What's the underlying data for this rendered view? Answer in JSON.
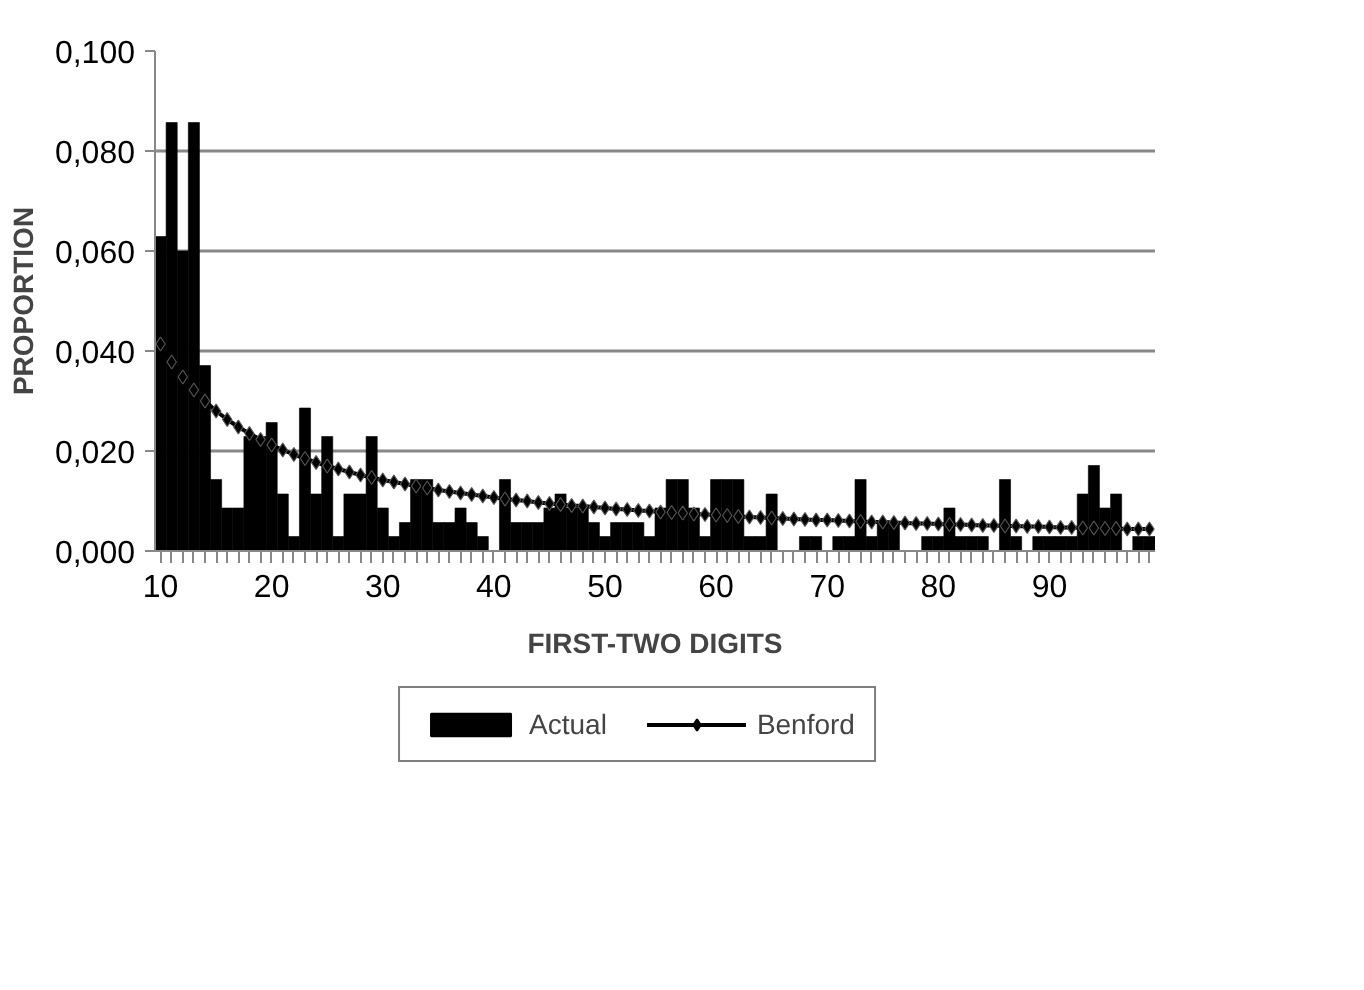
{
  "chart_data": {
    "type": "bar",
    "xlabel": "FIRST-TWO DIGITS",
    "ylabel": "PROPORTION",
    "categories": [
      "10",
      null,
      null,
      null,
      null,
      null,
      null,
      null,
      null,
      null,
      "20",
      null,
      null,
      null,
      null,
      null,
      null,
      null,
      null,
      null,
      "30",
      null,
      null,
      null,
      null,
      null,
      null,
      null,
      null,
      null,
      "40",
      null,
      null,
      null,
      null,
      null,
      null,
      null,
      null,
      null,
      "50",
      null,
      null,
      null,
      null,
      null,
      null,
      null,
      null,
      null,
      "60",
      null,
      null,
      null,
      null,
      null,
      null,
      null,
      null,
      null,
      "70",
      null,
      null,
      null,
      null,
      null,
      null,
      null,
      null,
      null,
      "80",
      null,
      null,
      null,
      null,
      null,
      null,
      null,
      null,
      null,
      "90",
      null,
      null,
      null,
      null,
      null,
      null,
      null,
      null,
      null
    ],
    "ylim": [
      0,
      0.1
    ],
    "yticks": [
      {
        "value": 0,
        "label": "0,000"
      },
      {
        "value": 0.02,
        "label": "0,020"
      },
      {
        "value": 0.04,
        "label": "0,040"
      },
      {
        "value": 0.06,
        "label": "0,060"
      },
      {
        "value": 0.08,
        "label": "0,080"
      },
      {
        "value": 0.1,
        "label": "0,100"
      }
    ],
    "grid": "y",
    "legend": "bottom",
    "series": [
      {
        "name": "Actual",
        "color": "#000000",
        "values": [
          0.0629,
          0.0857,
          0.06,
          0.0857,
          0.0371,
          0.0143,
          0.0086,
          0.0086,
          0.0229,
          0.0229,
          0.0257,
          0.0114,
          0.0029,
          0.0286,
          0.0114,
          0.0229,
          0.0029,
          0.0114,
          0.0114,
          0.0229,
          0.0086,
          0.0029,
          0.0057,
          0.0143,
          0.0143,
          0.0057,
          0.0057,
          0.0086,
          0.0057,
          0.0029,
          0,
          0.0143,
          0.0057,
          0.0057,
          0.0057,
          0.0086,
          0.0114,
          0.0086,
          0.0086,
          0.0057,
          0.0029,
          0.0057,
          0.0057,
          0.0057,
          0.0029,
          0.0086,
          0.0143,
          0.0143,
          0.0086,
          0.0029,
          0.0143,
          0.0143,
          0.0143,
          0.0029,
          0.0029,
          0.0114,
          0,
          0,
          0.0029,
          0.0029,
          0,
          0.0029,
          0.0029,
          0.0143,
          0.0029,
          0.0057,
          0.0057,
          0,
          0,
          0.0029,
          0.0029,
          0.0086,
          0.0029,
          0.0029,
          0.0029,
          0,
          0.0143,
          0.0029,
          0,
          0.0029,
          0.0029,
          0.0029,
          0.0029,
          0.0114,
          0.0171,
          0.0086,
          0.0114,
          0,
          0.0029,
          0.0029
        ]
      },
      {
        "name": "Benford",
        "type": "line",
        "color": "#000000",
        "marker": "diamond",
        "line_style": "solid",
        "values": [
          0.0414,
          0.0378,
          0.0348,
          0.0322,
          0.03,
          0.028,
          0.0263,
          0.0248,
          0.0235,
          0.0223,
          0.0212,
          0.0202,
          0.0193,
          0.0185,
          0.0177,
          0.017,
          0.0164,
          0.0158,
          0.0152,
          0.0147,
          0.0142,
          0.0138,
          0.0134,
          0.013,
          0.0126,
          0.0122,
          0.0119,
          0.0116,
          0.0113,
          0.011,
          0.0107,
          0.0104,
          0.0102,
          0.01,
          0.0097,
          0.0095,
          0.0093,
          0.0091,
          0.009,
          0.0088,
          0.0086,
          0.0084,
          0.0083,
          0.0081,
          0.008,
          0.0078,
          0.0077,
          0.0076,
          0.0074,
          0.0073,
          0.0072,
          0.0071,
          0.0069,
          0.0068,
          0.0067,
          0.0066,
          0.0065,
          0.0064,
          0.0063,
          0.0062,
          0.0062,
          0.0061,
          0.006,
          0.0059,
          0.0058,
          0.0058,
          0.0057,
          0.0056,
          0.0055,
          0.0055,
          0.0054,
          0.0053,
          0.0053,
          0.0052,
          0.0051,
          0.0051,
          0.005,
          0.005,
          0.0049,
          0.0049,
          0.0048,
          0.0047,
          0.0047,
          0.0046,
          0.0046,
          0.0045,
          0.0045,
          0.0044,
          0.0044,
          0.0044
        ]
      }
    ]
  }
}
